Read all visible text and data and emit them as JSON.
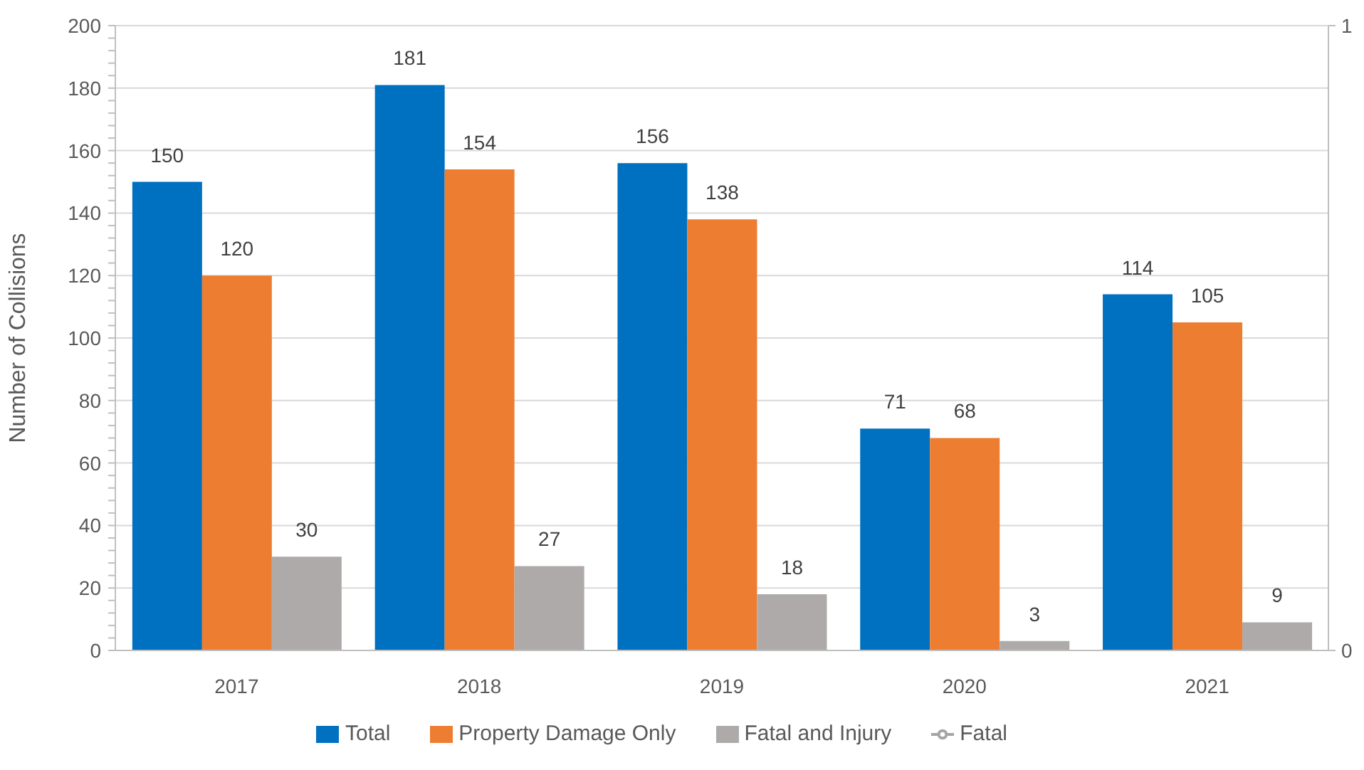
{
  "chart_data": {
    "type": "bar",
    "categories": [
      "2017",
      "2018",
      "2019",
      "2020",
      "2021"
    ],
    "series": [
      {
        "name": "Total",
        "color": "#0070c0",
        "values": [
          150,
          181,
          156,
          71,
          114
        ]
      },
      {
        "name": "Property Damage Only",
        "color": "#ed7d31",
        "values": [
          120,
          154,
          138,
          68,
          105
        ]
      },
      {
        "name": "Fatal and Injury",
        "color": "#aeaaaa",
        "values": [
          30,
          27,
          18,
          3,
          9
        ]
      },
      {
        "name": "Fatal",
        "type": "line",
        "axis": "y2",
        "color": "#a5a5a5",
        "values": [
          null,
          null,
          null,
          null,
          null
        ]
      }
    ],
    "ylabel": "Number of Collisions",
    "ylim": [
      0,
      200
    ],
    "yticks": [
      0,
      {
        "value": 4,
        "label": null
      },
      {
        "value": 8,
        "label": null
      },
      {
        "value": 12,
        "label": null
      },
      {
        "value": 16,
        "label": null
      },
      20,
      {
        "value": 24,
        "label": null
      },
      {
        "value": 28,
        "label": null
      },
      {
        "value": 32,
        "label": null
      },
      {
        "value": 36,
        "label": null
      },
      40,
      {
        "value": 44,
        "label": null
      },
      {
        "value": 48,
        "label": null
      },
      {
        "value": 52,
        "label": null
      },
      {
        "value": 56,
        "label": null
      },
      60,
      {
        "value": 64,
        "label": null
      },
      {
        "value": 68,
        "label": null
      },
      {
        "value": 72,
        "label": null
      },
      {
        "value": 76,
        "label": null
      },
      80,
      {
        "value": 84,
        "label": null
      },
      {
        "value": 88,
        "label": null
      },
      {
        "value": 92,
        "label": null
      },
      {
        "value": 96,
        "label": null
      },
      100,
      {
        "value": 104,
        "label": null
      },
      {
        "value": 108,
        "label": null
      },
      {
        "value": 112,
        "label": null
      },
      {
        "value": 116,
        "label": null
      },
      120,
      {
        "value": 124,
        "label": null
      },
      {
        "value": 128,
        "label": null
      },
      {
        "value": 132,
        "label": null
      },
      {
        "value": 136,
        "label": null
      },
      140,
      {
        "value": 144,
        "label": null
      },
      {
        "value": 148,
        "label": null
      },
      {
        "value": 152,
        "label": null
      },
      {
        "value": 156,
        "label": null
      },
      160,
      {
        "value": 164,
        "label": null
      },
      {
        "value": 168,
        "label": null
      },
      {
        "value": 172,
        "label": null
      },
      {
        "value": 176,
        "label": null
      },
      180,
      {
        "value": 184,
        "label": null
      },
      {
        "value": 188,
        "label": null
      },
      {
        "value": 192,
        "label": null
      },
      {
        "value": 196,
        "label": null
      },
      200
    ],
    "y2lim": [
      0,
      1
    ],
    "y2ticks": [
      0,
      1
    ],
    "grid": "y",
    "legend": "bottom",
    "data_labels": true,
    "marker": "circle"
  }
}
